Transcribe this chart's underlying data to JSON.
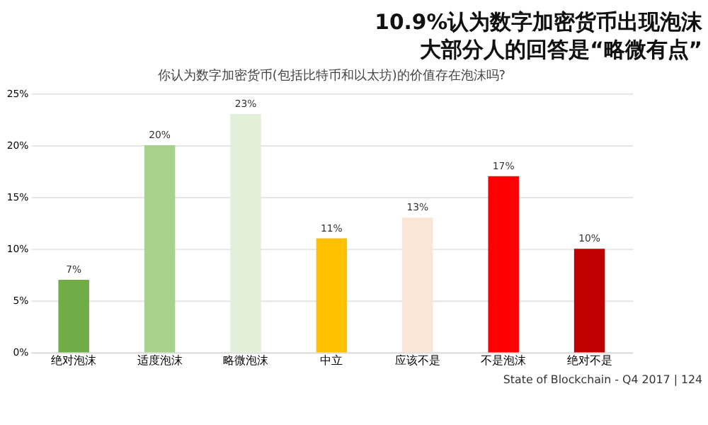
{
  "chart_data": {
    "type": "bar",
    "title": "你认为数字加密货币(包括比特币和以太坊)的价值存在泡沫吗?",
    "annotations": [
      "10.9%认为数字加密货币出现泡沫",
      "大部分人的回答是“略微有点”",
      "State of Blockchain - Q4 2017 | 124"
    ],
    "categories": [
      "绝对泡沫",
      "适度泡沫",
      "略微泡沫",
      "中立",
      "应该不是",
      "不是泡沫",
      "绝对不是"
    ],
    "values": [
      7,
      20,
      23,
      11,
      13,
      17,
      10
    ],
    "colors": [
      "#70ad47",
      "#a9d18e",
      "#e2f0d9",
      "#ffc000",
      "#fbe5d6",
      "#ff0000",
      "#c00000"
    ],
    "value_labels": [
      "7%",
      "20%",
      "23%",
      "11%",
      "13%",
      "17%",
      "10%"
    ],
    "ylim": [
      0,
      25
    ],
    "yticks": [
      {
        "value": 0,
        "label": "0%"
      },
      {
        "value": 5,
        "label": "5%"
      },
      {
        "value": 10,
        "label": "10%"
      },
      {
        "value": 15,
        "label": "15%"
      },
      {
        "value": 20,
        "label": "20%"
      },
      {
        "value": 25,
        "label": "25%"
      }
    ],
    "grid": "y"
  }
}
